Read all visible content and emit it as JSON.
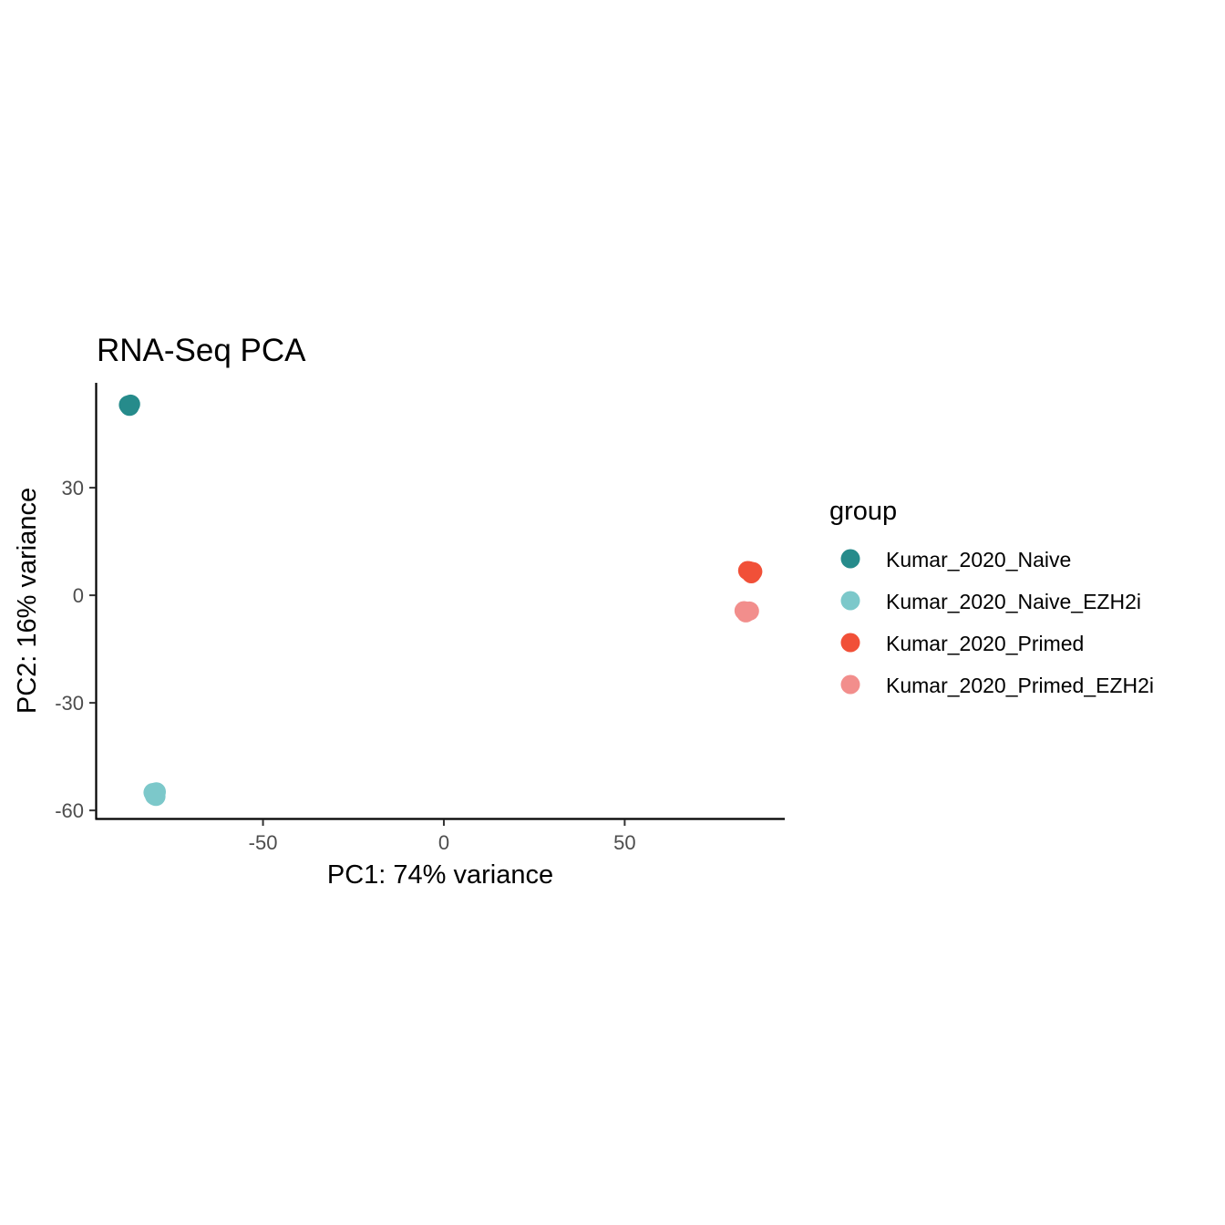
{
  "chart_data": {
    "type": "scatter",
    "title": "RNA-Seq PCA",
    "xlabel": "PC1: 74% variance",
    "ylabel": "PC2: 16% variance",
    "xlim": [
      -96,
      94
    ],
    "ylim": [
      -62,
      59
    ],
    "x_ticks": [
      -50,
      0,
      50
    ],
    "x_tick_labels": [
      "-50",
      "0",
      "50"
    ],
    "y_ticks": [
      -60,
      -30,
      0,
      30
    ],
    "y_tick_labels": [
      "-60",
      "-30",
      "0",
      "30"
    ],
    "grid": false,
    "legend": {
      "title": "group",
      "position": "right"
    },
    "series": [
      {
        "name": "Kumar_2020_Naive",
        "color": "#268B8B",
        "points": [
          [
            -87.2,
            53.1
          ],
          [
            -86.6,
            53.3
          ],
          [
            -86.9,
            52.7
          ]
        ]
      },
      {
        "name": "Kumar_2020_Naive_EZH2i",
        "color": "#7CC8CA",
        "points": [
          [
            -80.4,
            -55.0
          ],
          [
            -79.5,
            -54.8
          ],
          [
            -80.0,
            -55.9
          ],
          [
            -79.6,
            -56.1
          ]
        ]
      },
      {
        "name": "Kumar_2020_Primed",
        "color": "#F15038",
        "points": [
          [
            84.0,
            6.9
          ],
          [
            85.4,
            6.6
          ],
          [
            85.0,
            6.0
          ],
          [
            84.5,
            6.8
          ]
        ]
      },
      {
        "name": "Kumar_2020_Primed_EZH2i",
        "color": "#F28E8C",
        "points": [
          [
            83.0,
            -4.3
          ],
          [
            83.8,
            -4.6
          ],
          [
            84.5,
            -4.4
          ],
          [
            83.5,
            -4.9
          ]
        ]
      }
    ]
  }
}
